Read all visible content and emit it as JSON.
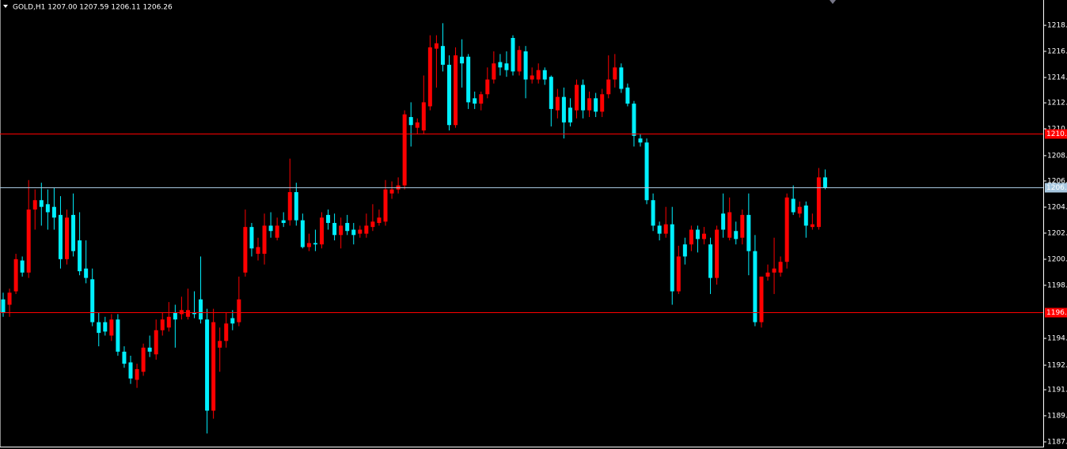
{
  "chart_data": {
    "type": "candlestick",
    "title": "GOLD,H1  1207.00 1207.59 1206.11 1206.26",
    "up_color": "#ff0000",
    "down_color": "#00f0ff",
    "ylim": [
      1186.74,
      1220.23
    ],
    "yticks": [
      {
        "value": 1218.34,
        "label": "1218."
      },
      {
        "value": 1216.4,
        "label": "1216."
      },
      {
        "value": 1214.45,
        "label": "1214."
      },
      {
        "value": 1212.56,
        "label": "1212."
      },
      {
        "value": 1210.62,
        "label": "1210."
      },
      {
        "value": 1208.62,
        "label": "1208."
      },
      {
        "value": 1206.73,
        "label": "1206."
      },
      {
        "value": 1204.78,
        "label": "1204."
      },
      {
        "value": 1202.84,
        "label": "1202."
      },
      {
        "value": 1200.89,
        "label": "1200."
      },
      {
        "value": 1198.95,
        "label": "1198."
      },
      {
        "value": 1194.99,
        "label": "1194."
      },
      {
        "value": 1192.99,
        "label": "1192."
      },
      {
        "value": 1191.16,
        "label": "1191."
      },
      {
        "value": 1189.22,
        "label": "1189."
      },
      {
        "value": 1187.27,
        "label": "1187."
      }
    ],
    "price_lines": [
      {
        "value": 1210.27,
        "label": "1210.",
        "color": "#ff0000"
      },
      {
        "value": 1196.94,
        "label": "1196.",
        "color": "#ff0000"
      },
      {
        "value": 1206.26,
        "label": "1206.",
        "color": "#a8c8e0"
      }
    ],
    "open": [
      1197.9,
      1197.5,
      1198.5,
      1200.8,
      1199.9,
      1204.6,
      1205.3,
      1205.0,
      1204.8,
      1204.2,
      1200.9,
      1204.2,
      1202.3,
      1200.2,
      1199.4,
      1196.2,
      1196.2,
      1195.2,
      1196.4,
      1194.0,
      1193.2,
      1191.9,
      1192.5,
      1194.3,
      1193.8,
      1195.6,
      1195.8,
      1196.9,
      1196.8,
      1196.6,
      1196.9,
      1197.9,
      1196.4,
      1189.6,
      1194.3,
      1194.8,
      1196.5,
      1196.2,
      1199.9,
      1203.3,
      1201.3,
      1201.3,
      1203.4,
      1202.5,
      1203.8,
      1203.8,
      1205.9,
      1203.8,
      1201.8,
      1202.1,
      1202.0,
      1204.2,
      1203.6,
      1202.7,
      1203.6,
      1203.1,
      1202.8,
      1202.8,
      1203.3,
      1203.6,
      1203.7,
      1205.8,
      1206.1,
      1206.4,
      1211.5,
      1210.7,
      1210.5,
      1212.3,
      1216.6,
      1216.8,
      1215.4,
      1210.9,
      1216.0,
      1216.0,
      1212.9,
      1212.5,
      1213.2,
      1214.3,
      1215.6,
      1215.5,
      1217.4,
      1214.9,
      1216.4,
      1214.3,
      1214.3,
      1215.0,
      1214.5,
      1212.0,
      1213.0,
      1212.2,
      1212.0,
      1213.9,
      1212.0,
      1212.9,
      1211.9,
      1213.2,
      1214.3,
      1215.2,
      1213.7,
      1212.5,
      1209.9,
      1209.6,
      1205.3,
      1203.4,
      1202.8,
      1203.5,
      1198.5,
      1202.0,
      1202.0,
      1203.1,
      1202.4,
      1202.0,
      1199.5,
      1204.3,
      1202.5,
      1203.0,
      1202.5,
      1204.2,
      1201.5,
      1196.2,
      1199.6,
      1199.9,
      1199.9,
      1200.7,
      1205.4,
      1204.3,
      1204.9,
      1203.3,
      1203.3,
      1207.0
    ],
    "high": [
      1198.4,
      1198.7,
      1201.3,
      1201.1,
      1206.8,
      1206.1,
      1206.6,
      1206.1,
      1206.2,
      1205.6,
      1204.6,
      1205.8,
      1204.4,
      1202.3,
      1200.2,
      1196.9,
      1196.6,
      1196.8,
      1196.8,
      1194.4,
      1193.7,
      1193.1,
      1194.6,
      1195.2,
      1196.4,
      1196.9,
      1197.7,
      1197.5,
      1198.1,
      1198.7,
      1198.5,
      1201.1,
      1197.2,
      1197.2,
      1195.8,
      1196.9,
      1197.1,
      1199.6,
      1204.6,
      1203.6,
      1202.5,
      1204.3,
      1204.4,
      1204.0,
      1204.4,
      1208.4,
      1206.6,
      1204.3,
      1202.8,
      1203.1,
      1204.4,
      1204.6,
      1204.3,
      1204.0,
      1204.2,
      1203.6,
      1203.4,
      1204.3,
      1205.0,
      1204.6,
      1206.8,
      1206.7,
      1207.0,
      1212.0,
      1212.6,
      1211.4,
      1214.6,
      1217.6,
      1217.6,
      1218.5,
      1216.1,
      1216.7,
      1217.3,
      1216.2,
      1213.4,
      1213.4,
      1215.2,
      1216.4,
      1216.2,
      1216.4,
      1217.6,
      1216.8,
      1216.8,
      1215.2,
      1215.5,
      1215.2,
      1214.6,
      1213.6,
      1213.7,
      1212.9,
      1214.3,
      1214.3,
      1213.4,
      1213.3,
      1213.6,
      1216.1,
      1216.2,
      1215.5,
      1214.0,
      1212.7,
      1210.2,
      1209.9,
      1205.8,
      1203.7,
      1204.8,
      1204.8,
      1201.9,
      1202.5,
      1203.4,
      1203.4,
      1203.3,
      1202.5,
      1203.4,
      1205.8,
      1205.5,
      1203.7,
      1204.6,
      1205.8,
      1202.7,
      1199.6,
      1200.5,
      1202.5,
      1201.1,
      1205.8,
      1206.4,
      1205.2,
      1205.2,
      1204.3,
      1207.7,
      1207.59
    ],
    "low": [
      1196.6,
      1196.6,
      1198.3,
      1199.6,
      1199.5,
      1203.1,
      1203.4,
      1203.1,
      1203.1,
      1200.2,
      1200.5,
      1201.1,
      1199.7,
      1199.1,
      1195.9,
      1194.4,
      1195.2,
      1194.8,
      1193.7,
      1192.8,
      1191.6,
      1191.3,
      1192.2,
      1193.6,
      1193.4,
      1195.2,
      1195.5,
      1194.3,
      1196.4,
      1196.4,
      1196.5,
      1196.1,
      1187.9,
      1189.0,
      1192.5,
      1194.3,
      1195.6,
      1195.9,
      1199.6,
      1201.1,
      1200.8,
      1200.5,
      1202.5,
      1202.3,
      1203.3,
      1203.4,
      1203.4,
      1201.7,
      1201.5,
      1201.5,
      1201.7,
      1203.1,
      1202.3,
      1201.7,
      1202.7,
      1202.0,
      1202.5,
      1202.5,
      1203.0,
      1203.4,
      1203.4,
      1205.4,
      1205.8,
      1206.1,
      1209.3,
      1210.2,
      1210.2,
      1212.0,
      1213.7,
      1214.9,
      1210.5,
      1210.7,
      1213.7,
      1212.1,
      1212.1,
      1212.0,
      1212.9,
      1214.0,
      1214.6,
      1214.5,
      1214.6,
      1214.6,
      1212.9,
      1214.0,
      1214.0,
      1213.9,
      1210.8,
      1211.4,
      1209.9,
      1210.8,
      1211.4,
      1211.4,
      1211.5,
      1211.5,
      1211.5,
      1212.9,
      1213.7,
      1213.3,
      1212.3,
      1209.3,
      1209.3,
      1205.0,
      1203.0,
      1202.3,
      1202.5,
      1197.5,
      1198.3,
      1200.5,
      1201.5,
      1201.4,
      1202.0,
      1198.3,
      1199.0,
      1202.5,
      1202.3,
      1202.0,
      1202.0,
      1199.7,
      1195.9,
      1195.8,
      1199.3,
      1198.3,
      1199.6,
      1200.2,
      1204.2,
      1204.0,
      1202.5,
      1203.1,
      1203.1,
      1206.11
    ],
    "close": [
      1196.9,
      1198.4,
      1200.9,
      1199.9,
      1204.6,
      1205.3,
      1204.8,
      1204.4,
      1204.0,
      1200.9,
      1204.0,
      1201.5,
      1200.0,
      1199.5,
      1196.2,
      1195.4,
      1195.5,
      1196.4,
      1194.0,
      1193.1,
      1192.0,
      1192.7,
      1194.3,
      1194.0,
      1195.6,
      1196.4,
      1196.6,
      1196.4,
      1197.1,
      1197.1,
      1196.8,
      1196.4,
      1189.6,
      1196.2,
      1194.8,
      1196.1,
      1196.1,
      1197.9,
      1203.3,
      1201.7,
      1201.8,
      1203.4,
      1203.0,
      1203.4,
      1203.6,
      1205.9,
      1203.8,
      1201.8,
      1202.1,
      1202.0,
      1204.0,
      1203.6,
      1202.7,
      1203.4,
      1203.0,
      1202.7,
      1203.1,
      1203.4,
      1203.7,
      1204.0,
      1206.1,
      1206.1,
      1206.4,
      1211.7,
      1210.9,
      1211.1,
      1212.6,
      1216.7,
      1217.0,
      1215.4,
      1210.9,
      1216.1,
      1215.5,
      1212.6,
      1212.5,
      1213.2,
      1214.3,
      1215.5,
      1215.2,
      1215.0,
      1214.9,
      1216.5,
      1214.3,
      1214.6,
      1215.0,
      1214.3,
      1212.1,
      1213.0,
      1211.1,
      1211.1,
      1213.9,
      1212.0,
      1212.9,
      1211.9,
      1213.2,
      1214.3,
      1215.2,
      1213.6,
      1212.5,
      1210.1,
      1209.6,
      1205.3,
      1203.4,
      1202.8,
      1203.5,
      1198.5,
      1201.1,
      1201.1,
      1203.1,
      1202.4,
      1202.8,
      1199.5,
      1203.1,
      1203.1,
      1204.4,
      1202.4,
      1204.2,
      1201.5,
      1196.2,
      1199.6,
      1199.9,
      1200.2,
      1200.7,
      1205.5,
      1204.4,
      1204.8,
      1203.4,
      1203.5,
      1207.0,
      1206.26
    ]
  }
}
